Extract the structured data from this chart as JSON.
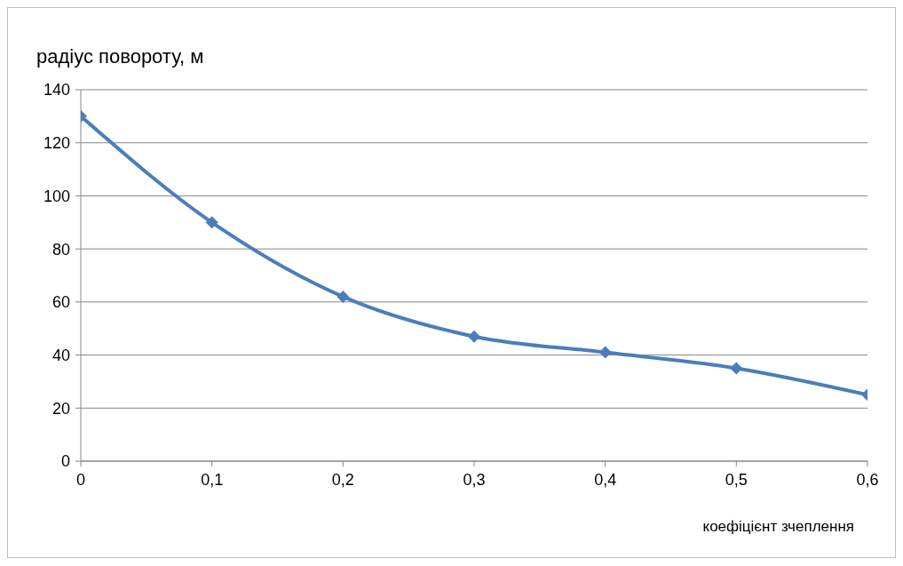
{
  "chart_data": {
    "type": "line",
    "ylabel": "радіус повороту, м",
    "xlabel": "коефіцієнт зчеплення",
    "x": [
      0,
      0.1,
      0.2,
      0.3,
      0.4,
      0.5,
      0.6
    ],
    "series": [
      {
        "color": "#4a7ebb",
        "values": [
          130,
          90,
          62,
          47,
          41,
          35,
          25
        ]
      }
    ],
    "xlim": [
      0,
      0.6
    ],
    "xticks": [
      0,
      {
        "value": 0.1,
        "label": "0,1"
      },
      {
        "value": 0.2,
        "label": "0,2"
      },
      {
        "value": 0.3,
        "label": "0,3"
      },
      {
        "value": 0.4,
        "label": "0,4"
      },
      {
        "value": 0.5,
        "label": "0,5"
      },
      {
        "value": 0.6,
        "label": "0,6"
      }
    ],
    "ylim": [
      0,
      140
    ],
    "yticks": [
      0,
      20,
      40,
      60,
      80,
      100,
      120,
      140
    ],
    "grid": "y",
    "marker": "diamond",
    "line_style": "solid"
  }
}
